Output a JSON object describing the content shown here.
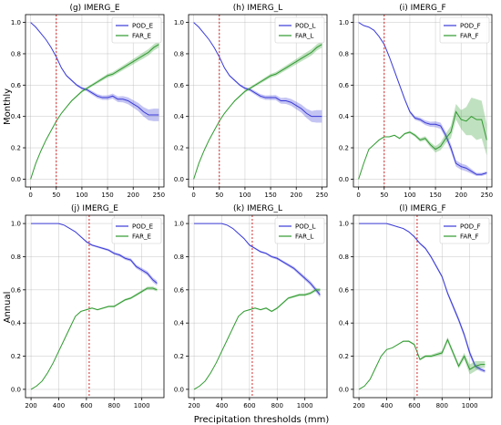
{
  "figure": {
    "row_labels": [
      "Monthly",
      "Annual"
    ],
    "xlabel": "Precipitation thresholds (mm)"
  },
  "colors": {
    "pod": "#3b3bd8",
    "far": "#2f9a2f",
    "vline": "#d62728",
    "grid": "#b0b0b0"
  },
  "chart_data": [
    {
      "type": "line",
      "title": "(g) IMERG_E",
      "xlabel": "",
      "ylabel": "Monthly",
      "xlim": [
        -10,
        260
      ],
      "ylim": [
        -0.05,
        1.05
      ],
      "xticks": [
        0,
        50,
        100,
        150,
        200,
        250
      ],
      "yticks": [
        0.0,
        0.2,
        0.4,
        0.6,
        0.8,
        1.0
      ],
      "vline": 50,
      "grid": true,
      "legend": "top-right",
      "x": [
        0,
        10,
        20,
        30,
        40,
        50,
        60,
        70,
        80,
        90,
        100,
        110,
        120,
        130,
        140,
        150,
        160,
        170,
        180,
        190,
        200,
        210,
        220,
        230,
        240,
        250
      ],
      "series": [
        {
          "name": "POD_E",
          "color": "pod",
          "values": [
            1.0,
            0.97,
            0.93,
            0.89,
            0.84,
            0.78,
            0.71,
            0.66,
            0.63,
            0.6,
            0.58,
            0.57,
            0.55,
            0.53,
            0.52,
            0.52,
            0.53,
            0.51,
            0.51,
            0.5,
            0.48,
            0.46,
            0.43,
            0.41,
            0.41,
            0.41
          ],
          "band": [
            0,
            0,
            0,
            0,
            0,
            0,
            0.005,
            0.005,
            0.006,
            0.007,
            0.008,
            0.01,
            0.012,
            0.013,
            0.014,
            0.015,
            0.016,
            0.018,
            0.02,
            0.022,
            0.024,
            0.026,
            0.03,
            0.035,
            0.04,
            0.04
          ]
        },
        {
          "name": "FAR_E",
          "color": "far",
          "values": [
            0.0,
            0.1,
            0.18,
            0.25,
            0.31,
            0.37,
            0.42,
            0.46,
            0.5,
            0.53,
            0.56,
            0.58,
            0.6,
            0.62,
            0.64,
            0.66,
            0.67,
            0.69,
            0.71,
            0.73,
            0.75,
            0.77,
            0.79,
            0.81,
            0.84,
            0.86
          ],
          "band": [
            0,
            0,
            0,
            0,
            0,
            0,
            0.003,
            0.004,
            0.005,
            0.006,
            0.007,
            0.008,
            0.009,
            0.01,
            0.011,
            0.012,
            0.013,
            0.014,
            0.015,
            0.016,
            0.017,
            0.018,
            0.02,
            0.02,
            0.02,
            0.02
          ]
        }
      ]
    },
    {
      "type": "line",
      "title": "(h) IMERG_L",
      "xlabel": "",
      "ylabel": "",
      "xlim": [
        -10,
        260
      ],
      "ylim": [
        -0.05,
        1.05
      ],
      "xticks": [
        0,
        50,
        100,
        150,
        200,
        250
      ],
      "yticks": [
        0.0,
        0.2,
        0.4,
        0.6,
        0.8,
        1.0
      ],
      "vline": 50,
      "grid": true,
      "legend": "top-right",
      "x": [
        0,
        10,
        20,
        30,
        40,
        50,
        60,
        70,
        80,
        90,
        100,
        110,
        120,
        130,
        140,
        150,
        160,
        170,
        180,
        190,
        200,
        210,
        220,
        230,
        240,
        250
      ],
      "series": [
        {
          "name": "POD_L",
          "color": "pod",
          "values": [
            1.0,
            0.97,
            0.93,
            0.89,
            0.84,
            0.78,
            0.71,
            0.66,
            0.63,
            0.6,
            0.58,
            0.57,
            0.55,
            0.53,
            0.52,
            0.52,
            0.52,
            0.5,
            0.5,
            0.49,
            0.47,
            0.45,
            0.42,
            0.4,
            0.4,
            0.4
          ],
          "band": [
            0,
            0,
            0,
            0,
            0,
            0,
            0.005,
            0.005,
            0.006,
            0.007,
            0.008,
            0.01,
            0.012,
            0.013,
            0.014,
            0.015,
            0.016,
            0.018,
            0.02,
            0.022,
            0.024,
            0.026,
            0.03,
            0.035,
            0.04,
            0.04
          ]
        },
        {
          "name": "FAR_L",
          "color": "far",
          "values": [
            0.0,
            0.1,
            0.18,
            0.25,
            0.31,
            0.37,
            0.42,
            0.46,
            0.5,
            0.53,
            0.56,
            0.58,
            0.6,
            0.62,
            0.64,
            0.66,
            0.67,
            0.69,
            0.71,
            0.73,
            0.75,
            0.77,
            0.79,
            0.81,
            0.84,
            0.86
          ],
          "band": [
            0,
            0,
            0,
            0,
            0,
            0,
            0.003,
            0.004,
            0.005,
            0.006,
            0.007,
            0.008,
            0.009,
            0.01,
            0.011,
            0.012,
            0.013,
            0.014,
            0.015,
            0.016,
            0.017,
            0.018,
            0.02,
            0.02,
            0.02,
            0.02
          ]
        }
      ]
    },
    {
      "type": "line",
      "title": "(i) IMERG_F",
      "xlabel": "",
      "ylabel": "",
      "xlim": [
        -10,
        260
      ],
      "ylim": [
        -0.05,
        1.05
      ],
      "xticks": [
        0,
        50,
        100,
        150,
        200,
        250
      ],
      "yticks": [
        0.0,
        0.2,
        0.4,
        0.6,
        0.8,
        1.0
      ],
      "vline": 50,
      "grid": true,
      "legend": "top-right",
      "x": [
        0,
        10,
        20,
        30,
        40,
        50,
        60,
        70,
        80,
        90,
        100,
        110,
        120,
        130,
        140,
        150,
        160,
        170,
        180,
        190,
        200,
        210,
        220,
        230,
        240,
        250
      ],
      "series": [
        {
          "name": "POD_F",
          "color": "pod",
          "values": [
            1.0,
            0.98,
            0.97,
            0.95,
            0.91,
            0.86,
            0.78,
            0.69,
            0.6,
            0.51,
            0.43,
            0.39,
            0.38,
            0.36,
            0.35,
            0.35,
            0.34,
            0.28,
            0.2,
            0.1,
            0.08,
            0.07,
            0.05,
            0.03,
            0.03,
            0.04
          ],
          "band": [
            0,
            0,
            0,
            0,
            0,
            0,
            0.005,
            0.006,
            0.007,
            0.008,
            0.01,
            0.012,
            0.013,
            0.015,
            0.016,
            0.018,
            0.02,
            0.022,
            0.024,
            0.02,
            0.02,
            0.02,
            0.015,
            0.01,
            0.01,
            0.01
          ]
        },
        {
          "name": "FAR_F",
          "color": "far",
          "values": [
            0.0,
            0.1,
            0.19,
            0.22,
            0.25,
            0.27,
            0.27,
            0.28,
            0.26,
            0.29,
            0.3,
            0.28,
            0.25,
            0.26,
            0.22,
            0.19,
            0.21,
            0.26,
            0.3,
            0.43,
            0.38,
            0.37,
            0.4,
            0.38,
            0.38,
            0.25
          ],
          "band": [
            0,
            0,
            0,
            0,
            0,
            0,
            0.003,
            0.004,
            0.005,
            0.006,
            0.008,
            0.01,
            0.012,
            0.014,
            0.016,
            0.02,
            0.025,
            0.03,
            0.04,
            0.05,
            0.06,
            0.09,
            0.12,
            0.13,
            0.12,
            0.1
          ]
        }
      ]
    },
    {
      "type": "line",
      "title": "(j) IMERG_E",
      "xlabel": "",
      "ylabel": "Annual",
      "xlim": [
        160,
        1160
      ],
      "ylim": [
        -0.05,
        1.05
      ],
      "xticks": [
        200,
        400,
        600,
        800,
        1000
      ],
      "yticks": [
        0.0,
        0.2,
        0.4,
        0.6,
        0.8,
        1.0
      ],
      "vline": 620,
      "grid": true,
      "legend": "top-right",
      "x": [
        200,
        240,
        280,
        320,
        360,
        400,
        440,
        480,
        520,
        560,
        600,
        640,
        680,
        720,
        760,
        800,
        840,
        880,
        920,
        960,
        1000,
        1040,
        1080,
        1110
      ],
      "series": [
        {
          "name": "POD_E",
          "color": "pod",
          "values": [
            1.0,
            1.0,
            1.0,
            1.0,
            1.0,
            1.0,
            0.99,
            0.97,
            0.95,
            0.92,
            0.89,
            0.87,
            0.86,
            0.85,
            0.84,
            0.82,
            0.81,
            0.79,
            0.78,
            0.74,
            0.72,
            0.7,
            0.66,
            0.64
          ],
          "band": [
            0,
            0,
            0,
            0,
            0,
            0,
            0,
            0,
            0.003,
            0.004,
            0.005,
            0.005,
            0.006,
            0.006,
            0.007,
            0.008,
            0.008,
            0.009,
            0.01,
            0.011,
            0.012,
            0.013,
            0.014,
            0.015
          ]
        },
        {
          "name": "FAR_E",
          "color": "far",
          "values": [
            0.0,
            0.02,
            0.05,
            0.1,
            0.16,
            0.23,
            0.3,
            0.37,
            0.44,
            0.47,
            0.48,
            0.49,
            0.48,
            0.49,
            0.5,
            0.5,
            0.52,
            0.54,
            0.55,
            0.57,
            0.59,
            0.61,
            0.61,
            0.6
          ],
          "band": [
            0,
            0,
            0,
            0,
            0,
            0,
            0,
            0,
            0.002,
            0.003,
            0.003,
            0.004,
            0.004,
            0.005,
            0.005,
            0.006,
            0.006,
            0.007,
            0.007,
            0.008,
            0.008,
            0.009,
            0.01,
            0.01
          ]
        }
      ]
    },
    {
      "type": "line",
      "title": "(k) IMERG_L",
      "xlabel": "",
      "ylabel": "",
      "xlim": [
        160,
        1160
      ],
      "ylim": [
        -0.05,
        1.05
      ],
      "xticks": [
        200,
        400,
        600,
        800,
        1000
      ],
      "yticks": [
        0.0,
        0.2,
        0.4,
        0.6,
        0.8,
        1.0
      ],
      "vline": 620,
      "grid": true,
      "legend": "top-right",
      "x": [
        200,
        240,
        280,
        320,
        360,
        400,
        440,
        480,
        520,
        560,
        600,
        640,
        680,
        720,
        760,
        800,
        840,
        880,
        920,
        960,
        1000,
        1040,
        1080,
        1110
      ],
      "series": [
        {
          "name": "POD_L",
          "color": "pod",
          "values": [
            1.0,
            1.0,
            1.0,
            1.0,
            1.0,
            1.0,
            0.99,
            0.97,
            0.94,
            0.91,
            0.87,
            0.85,
            0.83,
            0.82,
            0.8,
            0.79,
            0.77,
            0.75,
            0.73,
            0.7,
            0.67,
            0.64,
            0.6,
            0.57
          ],
          "band": [
            0,
            0,
            0,
            0,
            0,
            0,
            0,
            0,
            0.003,
            0.004,
            0.005,
            0.005,
            0.006,
            0.006,
            0.007,
            0.008,
            0.008,
            0.009,
            0.01,
            0.011,
            0.012,
            0.013,
            0.014,
            0.015
          ]
        },
        {
          "name": "FAR_L",
          "color": "far",
          "values": [
            0.0,
            0.02,
            0.05,
            0.1,
            0.16,
            0.23,
            0.3,
            0.37,
            0.44,
            0.47,
            0.48,
            0.49,
            0.48,
            0.49,
            0.47,
            0.49,
            0.52,
            0.55,
            0.56,
            0.57,
            0.57,
            0.58,
            0.6,
            0.6
          ],
          "band": [
            0,
            0,
            0,
            0,
            0,
            0,
            0,
            0,
            0.002,
            0.003,
            0.003,
            0.004,
            0.004,
            0.005,
            0.005,
            0.006,
            0.006,
            0.007,
            0.007,
            0.008,
            0.008,
            0.009,
            0.01,
            0.01
          ]
        }
      ]
    },
    {
      "type": "line",
      "title": "(l) IMERG_F",
      "xlabel": "",
      "ylabel": "",
      "xlim": [
        160,
        1160
      ],
      "ylim": [
        -0.05,
        1.05
      ],
      "xticks": [
        200,
        400,
        600,
        800,
        1000
      ],
      "yticks": [
        0.0,
        0.2,
        0.4,
        0.6,
        0.8,
        1.0
      ],
      "vline": 620,
      "grid": true,
      "legend": "top-right",
      "x": [
        200,
        240,
        280,
        320,
        360,
        400,
        440,
        480,
        520,
        560,
        600,
        640,
        680,
        720,
        760,
        800,
        840,
        880,
        920,
        960,
        1000,
        1040,
        1080,
        1110
      ],
      "series": [
        {
          "name": "POD_F",
          "color": "pod",
          "values": [
            1.0,
            1.0,
            1.0,
            1.0,
            1.0,
            1.0,
            0.99,
            0.98,
            0.97,
            0.95,
            0.92,
            0.88,
            0.85,
            0.8,
            0.74,
            0.68,
            0.58,
            0.5,
            0.42,
            0.33,
            0.22,
            0.14,
            0.12,
            0.11
          ],
          "band": [
            0,
            0,
            0,
            0,
            0,
            0,
            0,
            0,
            0.003,
            0.004,
            0.005,
            0.006,
            0.007,
            0.008,
            0.009,
            0.01,
            0.012,
            0.013,
            0.015,
            0.016,
            0.018,
            0.015,
            0.012,
            0.01
          ]
        },
        {
          "name": "FAR_F",
          "color": "far",
          "values": [
            0.0,
            0.02,
            0.06,
            0.13,
            0.2,
            0.24,
            0.25,
            0.27,
            0.29,
            0.29,
            0.27,
            0.18,
            0.2,
            0.2,
            0.21,
            0.22,
            0.3,
            0.22,
            0.14,
            0.2,
            0.12,
            0.14,
            0.15,
            0.15
          ],
          "band": [
            0,
            0,
            0,
            0,
            0,
            0,
            0,
            0,
            0.004,
            0.005,
            0.006,
            0.007,
            0.008,
            0.009,
            0.01,
            0.012,
            0.015,
            0.015,
            0.015,
            0.02,
            0.03,
            0.03,
            0.02,
            0.02
          ]
        }
      ]
    }
  ]
}
